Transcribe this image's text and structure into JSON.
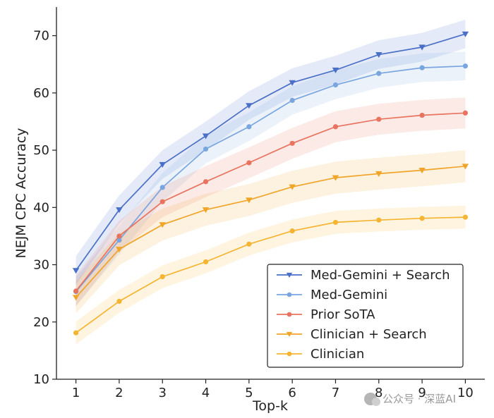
{
  "chart_data": {
    "type": "line",
    "xlabel": "Top-k",
    "ylabel": "NEJM CPC Accuracy",
    "x": [
      1,
      2,
      3,
      4,
      5,
      6,
      7,
      8,
      9,
      10
    ],
    "xlim": [
      0.55,
      10.45
    ],
    "ylim": [
      10,
      75
    ],
    "xticks": [
      1,
      2,
      3,
      4,
      5,
      6,
      7,
      8,
      9,
      10
    ],
    "yticks": [
      10,
      20,
      30,
      40,
      50,
      60,
      70
    ],
    "grid": false,
    "legend_position": "bottom-right",
    "series": [
      {
        "name": "Med-Gemini + Search",
        "color": "#4a6fc7",
        "marker": "triangle-down",
        "values": [
          29.0,
          39.6,
          47.5,
          52.5,
          57.8,
          61.8,
          64.0,
          66.7,
          68.0,
          70.3
        ],
        "band": 2.5
      },
      {
        "name": "Med-Gemini",
        "color": "#7aa6e0",
        "marker": "circle",
        "values": [
          25.3,
          34.3,
          43.5,
          50.2,
          54.1,
          58.7,
          61.4,
          63.4,
          64.4,
          64.7
        ],
        "band": 2.5
      },
      {
        "name": "Prior SoTA",
        "color": "#e8735e",
        "marker": "circle",
        "values": [
          25.4,
          35.0,
          41.0,
          44.5,
          47.8,
          51.2,
          54.1,
          55.4,
          56.1,
          56.5
        ],
        "band": 2.7
      },
      {
        "name": "Clinician + Search",
        "color": "#f0a52a",
        "marker": "triangle-down",
        "values": [
          24.3,
          32.7,
          37.0,
          39.6,
          41.3,
          43.6,
          45.2,
          45.9,
          46.5,
          47.2
        ],
        "band": 2.8
      },
      {
        "name": "Clinician",
        "color": "#f5b431",
        "marker": "circle",
        "values": [
          18.1,
          23.6,
          27.9,
          30.5,
          33.6,
          35.9,
          37.4,
          37.8,
          38.1,
          38.3
        ],
        "band": 2.0
      }
    ]
  },
  "watermark": {
    "text": "公众号 · 深蓝AI"
  }
}
